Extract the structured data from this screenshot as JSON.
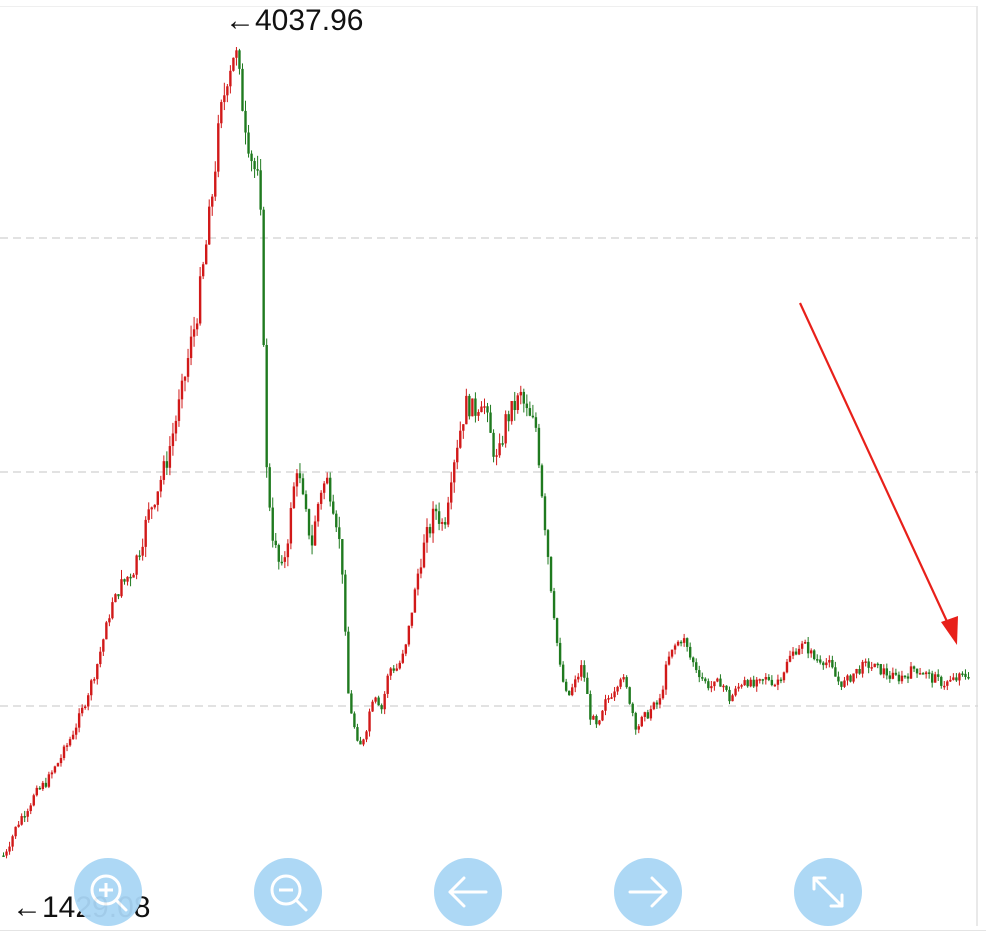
{
  "labels": {
    "max_text": "←4037.96",
    "min_text": "←1429.08"
  },
  "colors": {
    "up": "#d11919",
    "down": "#1f7a1f",
    "grid": "#d9d9d9",
    "annotation_arrow": "#e8201a",
    "button_bg": "#a9d6f5"
  },
  "toolbar": [
    {
      "name": "zoom-in-button",
      "icon": "zoom-in-icon"
    },
    {
      "name": "zoom-out-button",
      "icon": "zoom-out-icon"
    },
    {
      "name": "pan-left-button",
      "icon": "arrow-left-icon"
    },
    {
      "name": "pan-right-button",
      "icon": "arrow-right-icon"
    },
    {
      "name": "fullscreen-button",
      "icon": "expand-icon"
    }
  ],
  "chart_data": {
    "type": "candlestick",
    "title": "",
    "xlabel": "",
    "ylabel": "",
    "grid": true,
    "ylim": [
      1429.08,
      4037.96
    ],
    "max": 4037.96,
    "min": 1429.08,
    "closing_path": [
      [
        0,
        1450
      ],
      [
        2,
        1560
      ],
      [
        4,
        1640
      ],
      [
        6,
        1700
      ],
      [
        8,
        1790
      ],
      [
        10,
        1900
      ],
      [
        12,
        2050
      ],
      [
        14,
        2250
      ],
      [
        15,
        2300
      ],
      [
        17,
        2380
      ],
      [
        19,
        2560
      ],
      [
        21,
        2700
      ],
      [
        23,
        2920
      ],
      [
        25,
        3180
      ],
      [
        26,
        3350
      ],
      [
        27,
        3560
      ],
      [
        28,
        3800
      ],
      [
        29,
        3950
      ],
      [
        30,
        4037.96
      ],
      [
        31,
        3850
      ],
      [
        32,
        3700
      ],
      [
        33,
        3600
      ],
      [
        33.5,
        3400
      ],
      [
        34,
        2700
      ],
      [
        35,
        2450
      ],
      [
        36,
        2350
      ],
      [
        37,
        2500
      ],
      [
        38,
        2700
      ],
      [
        39,
        2550
      ],
      [
        40,
        2450
      ],
      [
        41,
        2620
      ],
      [
        42,
        2650
      ],
      [
        43,
        2550
      ],
      [
        44,
        2350
      ],
      [
        44.5,
        1990
      ],
      [
        45,
        1920
      ],
      [
        46,
        1780
      ],
      [
        47,
        1860
      ],
      [
        48,
        1980
      ],
      [
        49,
        1920
      ],
      [
        50,
        2050
      ],
      [
        51,
        2050
      ],
      [
        52,
        2100
      ],
      [
        53,
        2250
      ],
      [
        54,
        2400
      ],
      [
        55,
        2480
      ],
      [
        56,
        2560
      ],
      [
        57,
        2500
      ],
      [
        58,
        2680
      ],
      [
        59,
        2800
      ],
      [
        60,
        2900
      ],
      [
        61,
        2870
      ],
      [
        62,
        2920
      ],
      [
        63,
        2800
      ],
      [
        64,
        2700
      ],
      [
        65,
        2840
      ],
      [
        66,
        2880
      ],
      [
        67,
        2920
      ],
      [
        68,
        2850
      ],
      [
        69,
        2820
      ],
      [
        70,
        2550
      ],
      [
        71,
        2300
      ],
      [
        72,
        2060
      ],
      [
        73,
        1950
      ],
      [
        74,
        2000
      ],
      [
        75,
        2060
      ],
      [
        76,
        1900
      ],
      [
        77,
        1850
      ],
      [
        78,
        1940
      ],
      [
        79,
        1980
      ],
      [
        80,
        2030
      ],
      [
        81,
        1960
      ],
      [
        82,
        1860
      ],
      [
        83,
        1890
      ],
      [
        84,
        1920
      ],
      [
        85,
        1940
      ],
      [
        86,
        2070
      ],
      [
        87,
        2120
      ],
      [
        88,
        2150
      ],
      [
        89,
        2080
      ],
      [
        90,
        2040
      ],
      [
        91,
        2000
      ],
      [
        92,
        1990
      ],
      [
        93,
        2010
      ],
      [
        94,
        1950
      ],
      [
        95,
        1980
      ],
      [
        96,
        2020
      ],
      [
        97,
        1990
      ],
      [
        98,
        2000
      ],
      [
        99,
        2020
      ],
      [
        100,
        2000
      ],
      [
        101,
        2040
      ],
      [
        102,
        2090
      ],
      [
        103,
        2120
      ],
      [
        104,
        2120
      ],
      [
        105,
        2080
      ],
      [
        106,
        2080
      ],
      [
        107,
        2060
      ],
      [
        108,
        2010
      ],
      [
        109,
        2000
      ],
      [
        110,
        2030
      ],
      [
        111,
        2050
      ],
      [
        112,
        2060
      ],
      [
        113,
        2050
      ],
      [
        114,
        2040
      ],
      [
        115,
        2020
      ],
      [
        116,
        2020
      ],
      [
        117,
        2030
      ],
      [
        118,
        2050
      ],
      [
        119,
        2040
      ],
      [
        120,
        2020
      ],
      [
        121,
        2010
      ],
      [
        122,
        2000
      ],
      [
        123,
        2010
      ],
      [
        124,
        2020
      ],
      [
        125,
        2030
      ]
    ],
    "annotations": [
      {
        "type": "arrow",
        "points_to": "latest bar"
      }
    ]
  }
}
